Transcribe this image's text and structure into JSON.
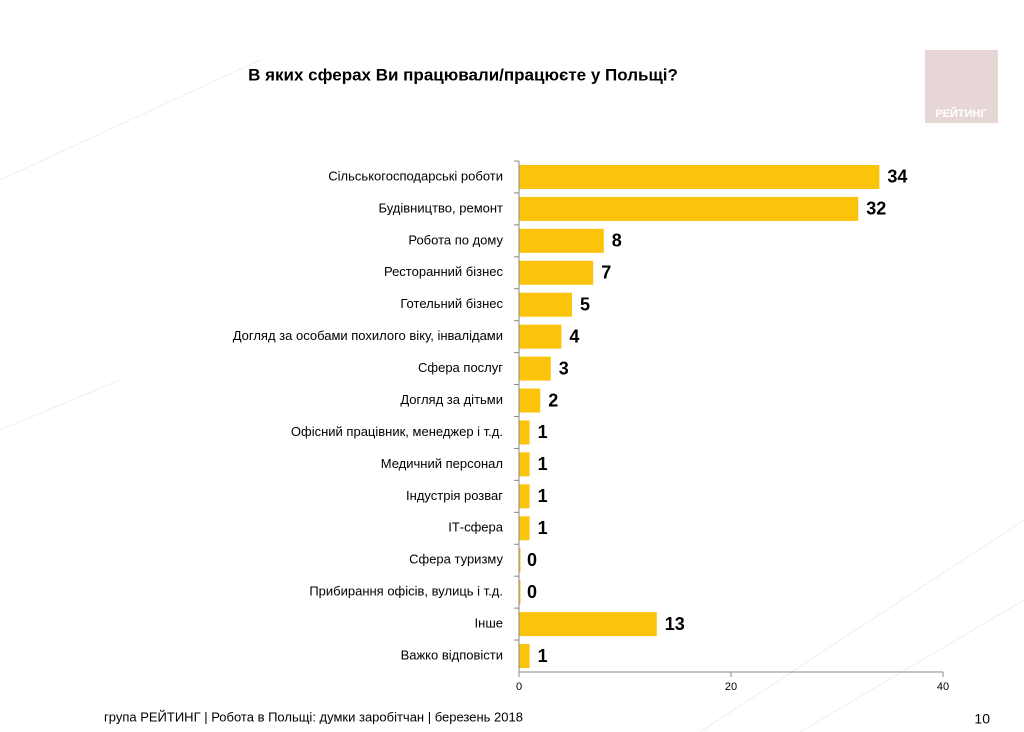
{
  "chart_data": {
    "type": "bar",
    "orientation": "horizontal",
    "title": "В яких сферах Ви працювали/працюєте у Польщі?",
    "categories": [
      "Сільськогосподарські роботи",
      "Будівництво, ремонт",
      "Робота по дому",
      "Ресторанний бізнес",
      "Готельний бізнес",
      "Догляд за особами похилого віку, інвалідами",
      "Сфера послуг",
      "Догляд за дітьми",
      "Офісний працівник, менеджер і т.д.",
      "Медичний персонал",
      "Індустрія розваг",
      "ІТ-сфера",
      "Сфера туризму",
      "Прибирання офісів, вулиць і т.д.",
      "Інше",
      "Важко відповісти"
    ],
    "values": [
      34,
      32,
      8,
      7,
      5,
      4,
      3,
      2,
      1,
      1,
      1,
      1,
      0,
      0,
      13,
      1
    ],
    "color": "#fcc30b",
    "xlim": [
      0,
      40
    ],
    "xticks": [
      0,
      20,
      40
    ],
    "grid": false
  },
  "logo": "РЕЙТИНГ",
  "footer": "група РЕЙТИНГ  | Робота в Польщі: думки заробітчан  |  березень 2018",
  "page_number": "10"
}
